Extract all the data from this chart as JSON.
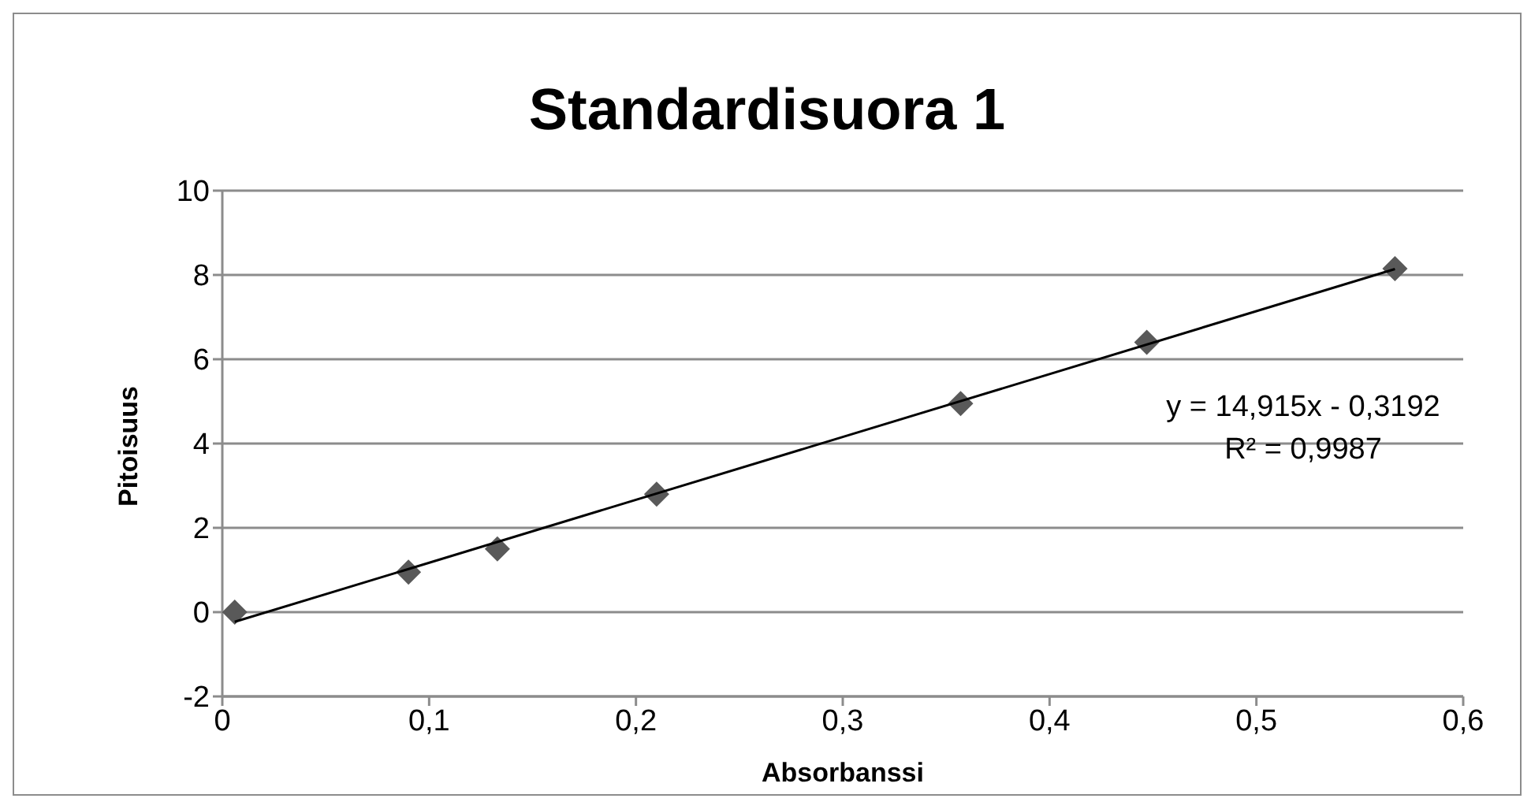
{
  "chart_data": {
    "type": "scatter",
    "title": "Standardisuora 1",
    "xlabel": "Absorbanssi",
    "ylabel": "Pitoisuus",
    "xlim": [
      0,
      0.6
    ],
    "xticks": [
      0,
      {
        "value": 0.1,
        "label": "0,1"
      },
      {
        "value": 0.2,
        "label": "0,2"
      },
      {
        "value": 0.3,
        "label": "0,3"
      },
      {
        "value": 0.4,
        "label": "0,4"
      },
      {
        "value": 0.5,
        "label": "0,5"
      },
      {
        "value": 0.6,
        "label": "0,6"
      }
    ],
    "ylim": [
      -2,
      10
    ],
    "yticks": [
      -2,
      0,
      2,
      4,
      6,
      8,
      10
    ],
    "grid": "y",
    "series": [
      {
        "marker": "diamond",
        "color": "#595959",
        "x": [
          0.006,
          0.09,
          0.133,
          0.21,
          0.357,
          0.447,
          0.567
        ],
        "values": [
          0,
          0.95,
          1.5,
          2.8,
          4.95,
          6.4,
          8.15
        ]
      },
      {
        "type": "line",
        "marker": "none",
        "color": "#000000",
        "line_style": "solid",
        "x": [
          0.006,
          0.567
        ],
        "values": [
          -0.23,
          8.14
        ]
      }
    ],
    "annotations": [
      "y = 14,915x - 0,3192",
      "R² = 0,9987"
    ]
  }
}
